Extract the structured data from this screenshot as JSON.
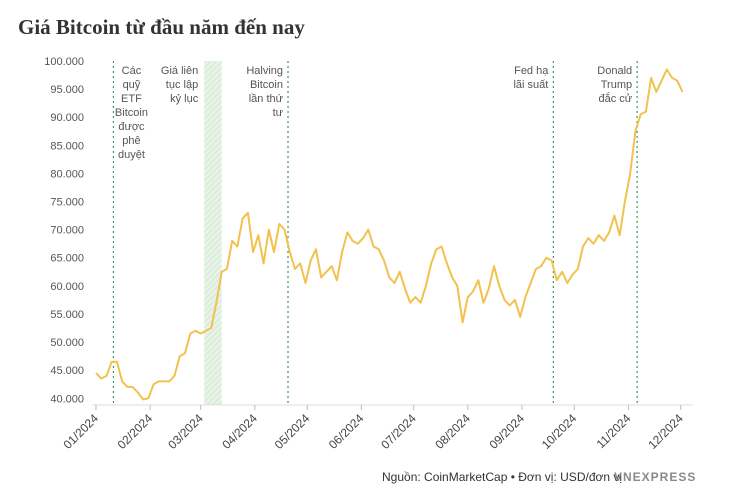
{
  "chart_data": {
    "type": "line",
    "title": "Giá Bitcoin từ đầu năm đến nay",
    "source": "Nguồn: CoinMarketCap • Đơn vị: USD/đơn vị",
    "brand": "VNEXPRESS",
    "color": "#f2c14e",
    "x": [
      0,
      3,
      6,
      9,
      12,
      15,
      18,
      21,
      24,
      27,
      30,
      33,
      36,
      39,
      42,
      45,
      48,
      51,
      54,
      57,
      60,
      63,
      66,
      69,
      72,
      75,
      78,
      81,
      84,
      87,
      90,
      93,
      96,
      99,
      102,
      105,
      108,
      111,
      114,
      117,
      120,
      123,
      126,
      129,
      132,
      135,
      138,
      141,
      144,
      147,
      150,
      153,
      156,
      159,
      162,
      165,
      168,
      171,
      174,
      177,
      180,
      183,
      186,
      189,
      192,
      195,
      198,
      201,
      204,
      207,
      210,
      213,
      216,
      219,
      222,
      225,
      228,
      231,
      234,
      237,
      240,
      243,
      246,
      249,
      252,
      255,
      258,
      261,
      264,
      267,
      270,
      273,
      276,
      279,
      282,
      285,
      288,
      291,
      294,
      297,
      300,
      303,
      306,
      309,
      312,
      315,
      318,
      321,
      324,
      327,
      330,
      333,
      336
    ],
    "values": [
      44500,
      43500,
      44000,
      46500,
      46500,
      43000,
      42000,
      42000,
      41000,
      39800,
      40000,
      42500,
      43000,
      43000,
      43000,
      44000,
      47500,
      48000,
      51500,
      52000,
      51500,
      52000,
      52500,
      57000,
      62500,
      63000,
      68000,
      67000,
      72000,
      73000,
      66000,
      69000,
      64000,
      70000,
      66000,
      71000,
      70000,
      66000,
      63000,
      64000,
      60500,
      64500,
      66500,
      61500,
      62500,
      63500,
      61000,
      66000,
      69500,
      68000,
      67500,
      68500,
      70000,
      67000,
      66500,
      64500,
      61500,
      60500,
      62500,
      59500,
      57000,
      58000,
      57000,
      60000,
      64000,
      66500,
      67000,
      64000,
      61500,
      60000,
      53500,
      58000,
      59000,
      61000,
      57000,
      59500,
      63500,
      60000,
      57500,
      56500,
      57500,
      54500,
      58000,
      60500,
      63000,
      63500,
      65000,
      64500,
      61000,
      62500,
      60500,
      62000,
      63000,
      67000,
      68500,
      67500,
      69000,
      68000,
      69500,
      72500,
      69000,
      75000,
      80000,
      87500,
      90500,
      91000,
      97000,
      94500,
      96500,
      98500,
      97000,
      96500,
      94500
    ],
    "xlim": [
      -2,
      342
    ],
    "xticks": [
      {
        "value": 0,
        "label": "01/2024"
      },
      {
        "value": 31,
        "label": "02/2024"
      },
      {
        "value": 60,
        "label": "03/2024"
      },
      {
        "value": 91,
        "label": "04/2024"
      },
      {
        "value": 121,
        "label": "05/2024"
      },
      {
        "value": 152,
        "label": "06/2024"
      },
      {
        "value": 182,
        "label": "07/2024"
      },
      {
        "value": 213,
        "label": "08/2024"
      },
      {
        "value": 244,
        "label": "09/2024"
      },
      {
        "value": 274,
        "label": "10/2024"
      },
      {
        "value": 305,
        "label": "11/2024"
      },
      {
        "value": 335,
        "label": "12/2024"
      }
    ],
    "ylim": [
      38800,
      100000
    ],
    "yticks": [
      {
        "value": 40000,
        "label": "40.000"
      },
      {
        "value": 45000,
        "label": "45.000"
      },
      {
        "value": 50000,
        "label": "50.000"
      },
      {
        "value": 55000,
        "label": "55.000"
      },
      {
        "value": 60000,
        "label": "60.000"
      },
      {
        "value": 65000,
        "label": "65.000"
      },
      {
        "value": 70000,
        "label": "70.000"
      },
      {
        "value": 75000,
        "label": "75.000"
      },
      {
        "value": 80000,
        "label": "80.000"
      },
      {
        "value": 85000,
        "label": "85.000"
      },
      {
        "value": 90000,
        "label": "90.000"
      },
      {
        "value": 95000,
        "label": "95.000"
      },
      {
        "value": 100000,
        "label": "100.000"
      }
    ],
    "band": {
      "x": [
        62,
        72
      ],
      "text": [
        "Giá liên",
        "tục lập",
        "kỷ lục"
      ]
    },
    "annotations": [
      {
        "x": 10,
        "text": [
          "Các",
          "quỹ",
          "ETF",
          "Bitcoin",
          "được",
          "phê",
          "duyệt"
        ]
      },
      {
        "x": 110,
        "text": [
          "Halving",
          "Bitcoin",
          "lần thứ",
          "tư"
        ]
      },
      {
        "x": 262,
        "text": [
          "Fed hạ",
          "lãi suất"
        ]
      },
      {
        "x": 310,
        "text": [
          "Donald",
          "Trump",
          "đắc cử"
        ]
      }
    ]
  }
}
